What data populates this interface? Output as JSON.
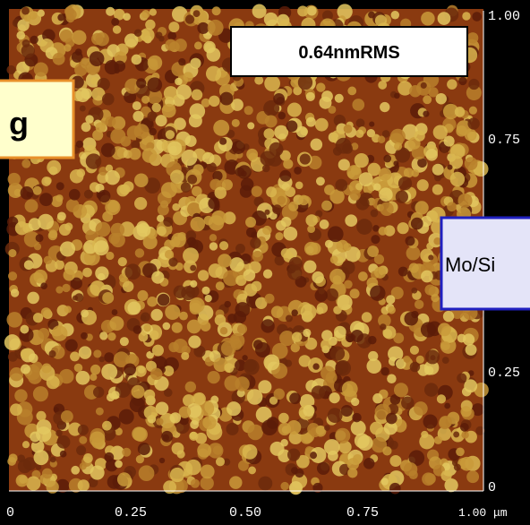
{
  "labels": {
    "rms": "0.64nmRMS",
    "left_box": "g",
    "right_box": "Mo/Si"
  },
  "x_axis": [
    "0",
    "0.25",
    "0.50",
    "0.75",
    "1.00 μm"
  ],
  "y_axis": [
    "1.00",
    "0.75",
    "0.25",
    "0"
  ]
}
